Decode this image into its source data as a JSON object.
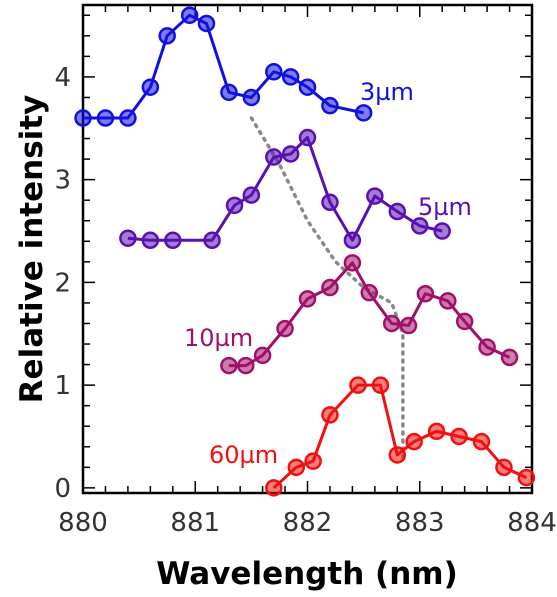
{
  "chart_data": {
    "type": "line",
    "xlabel": "Wavelength (nm)",
    "ylabel": "Relative intensity",
    "xlim": [
      880,
      884
    ],
    "ylim": [
      -0.05,
      4.7
    ],
    "xticks": [
      "880",
      "881",
      "882",
      "883",
      "884"
    ],
    "yticks": [
      "0",
      "1",
      "2",
      "3",
      "4"
    ],
    "grid": false,
    "series": [
      {
        "name": "3µm",
        "color": "#1010e0",
        "x": [
          880.0,
          880.2,
          880.4,
          880.6,
          880.75,
          880.95,
          881.1,
          881.3,
          881.5,
          881.7,
          881.85,
          882.0,
          882.2,
          882.5
        ],
        "y": [
          3.6,
          3.6,
          3.6,
          3.9,
          4.4,
          4.6,
          4.52,
          3.85,
          3.8,
          4.05,
          4.0,
          3.9,
          3.72,
          3.65
        ]
      },
      {
        "name": "5µm",
        "color": "#5a10b0",
        "x": [
          880.4,
          880.6,
          880.8,
          881.15,
          881.35,
          881.5,
          881.7,
          881.85,
          882.0,
          882.2,
          882.4,
          882.6,
          882.8,
          883.0,
          883.2
        ],
        "y": [
          2.43,
          2.41,
          2.41,
          2.41,
          2.75,
          2.85,
          3.22,
          3.25,
          3.41,
          2.78,
          2.41,
          2.84,
          2.69,
          2.55,
          2.5
        ]
      },
      {
        "name": "10µm",
        "color": "#a0106a",
        "x": [
          881.3,
          881.45,
          881.6,
          881.8,
          882.0,
          882.2,
          882.4,
          882.55,
          882.75,
          882.9,
          883.05,
          883.25,
          883.4,
          883.6,
          883.8
        ],
        "y": [
          1.19,
          1.19,
          1.29,
          1.55,
          1.84,
          1.95,
          2.19,
          1.9,
          1.6,
          1.58,
          1.89,
          1.82,
          1.62,
          1.37,
          1.27
        ]
      },
      {
        "name": "60µm",
        "color": "#f01010",
        "x": [
          881.7,
          881.9,
          882.05,
          882.2,
          882.45,
          882.65,
          882.8,
          882.95,
          883.15,
          883.35,
          883.55,
          883.75,
          883.95
        ],
        "y": [
          0.0,
          0.2,
          0.26,
          0.71,
          1.0,
          1.0,
          0.32,
          0.45,
          0.55,
          0.5,
          0.45,
          0.2,
          0.1
        ]
      }
    ],
    "guide_line": {
      "color": "#888888",
      "style": "dotted",
      "x": [
        881.5,
        881.75,
        882.0,
        882.25,
        882.5,
        882.75,
        882.85,
        882.85
      ],
      "y": [
        3.6,
        3.15,
        2.6,
        2.2,
        1.95,
        1.8,
        1.5,
        0.3
      ]
    }
  }
}
